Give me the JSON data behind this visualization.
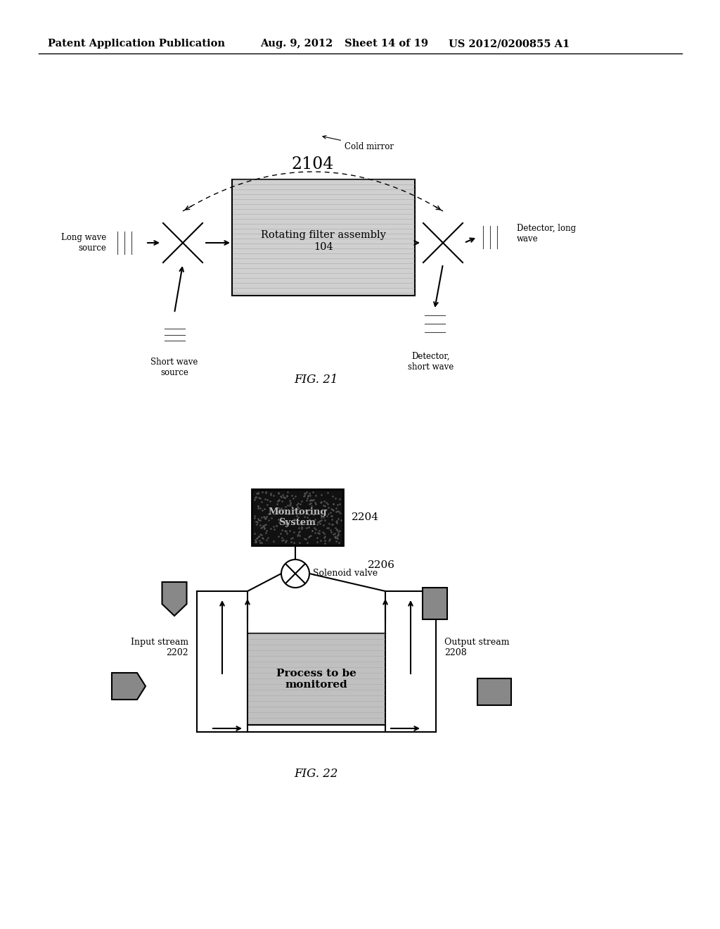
{
  "bg_color": "#ffffff",
  "header_text": "Patent Application Publication",
  "header_date": "Aug. 9, 2012",
  "header_sheet": "Sheet 14 of 19",
  "header_patent": "US 2012/0200855 A1",
  "fig21_label": "FIG. 21",
  "fig22_label": "FIG. 22",
  "fig21_center_box_text": "Rotating filter assembly\n104",
  "fig21_cold_mirror_label": "Cold mirror",
  "fig21_cold_mirror_num": "2104",
  "fig21_longwave_src_label": "Long wave\nsource",
  "fig21_shortwave_src_label": "Short wave\nsource",
  "fig21_detector_lw_label": "Detector, long\nwave",
  "fig21_detector_sw_label": "Detector,\nshort wave",
  "fig22_monitor_text": "Monitoring\nSystem",
  "fig22_monitor_num": "2204",
  "fig22_solenoid_label": "Solenoid valve",
  "fig22_solenoid_num": "2206",
  "fig22_input_label": "Input stream\n2202",
  "fig22_output_label": "Output stream\n2208",
  "fig22_process_text": "Process to be\nmonitored",
  "rfa_fill": "#d0d0d0",
  "src_fill": "#888888",
  "det_fill": "#888888",
  "dark_box_fill": "#111111",
  "process_fill": "#c0c0c0",
  "line_color": "#000000",
  "text_color": "#000000"
}
